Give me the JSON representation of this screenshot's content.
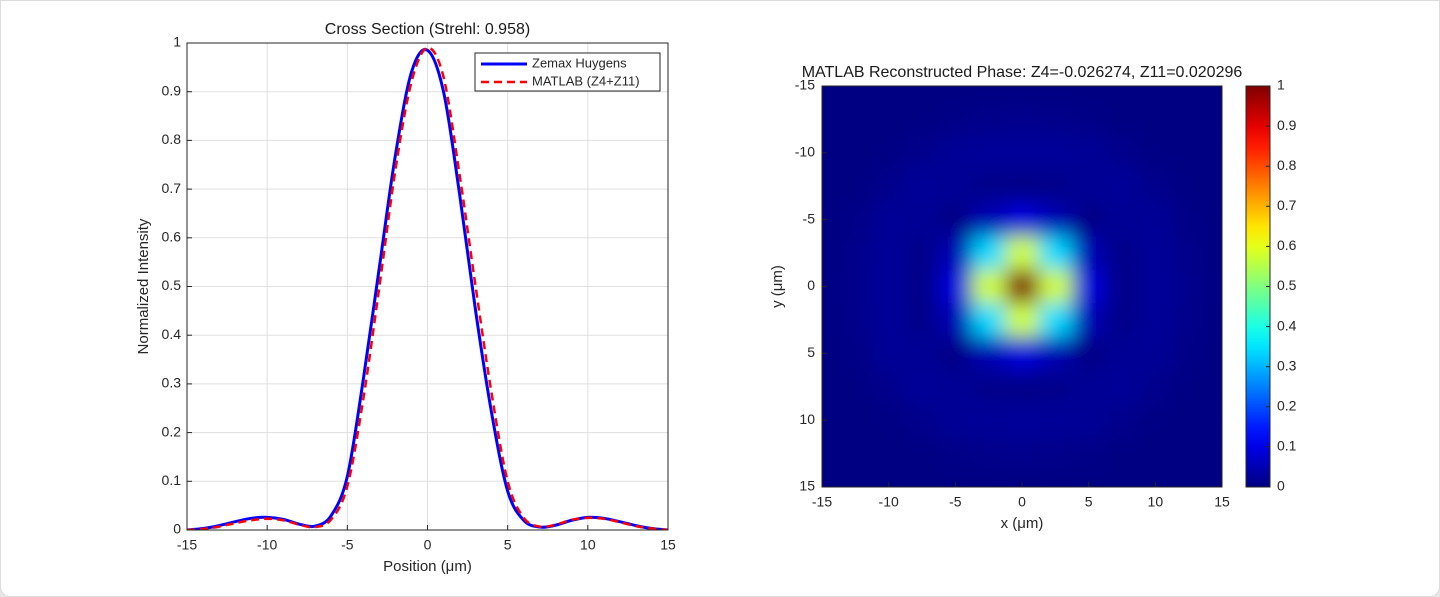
{
  "chart_data": [
    {
      "type": "line",
      "title": "Cross Section (Strehl: 0.958)",
      "xlabel": "Position  (μm)",
      "ylabel": "Normalized Intensity",
      "x": [
        -15,
        -14,
        -13,
        -12,
        -11,
        -10,
        -9,
        -8,
        -7,
        -6,
        -5,
        -4,
        -3,
        -2,
        -1,
        0,
        1,
        2,
        3,
        4,
        5,
        6,
        7,
        8,
        9,
        10,
        11,
        12,
        13,
        14,
        15
      ],
      "series": [
        {
          "name": "Zemax Huygens",
          "color": "#0000ff",
          "dashed": false,
          "values": [
            0,
            0.003,
            0.009,
            0.017,
            0.024,
            0.026,
            0.022,
            0.012,
            0.008,
            0.03,
            0.11,
            0.31,
            0.54,
            0.77,
            0.94,
            0.985,
            0.9,
            0.69,
            0.45,
            0.24,
            0.08,
            0.02,
            0.006,
            0.01,
            0.02,
            0.026,
            0.024,
            0.017,
            0.009,
            0.003,
            0
          ]
        },
        {
          "name": "MATLAB (Z4+Z11)",
          "color": "#ff0000",
          "dashed": true,
          "values": [
            0,
            0.002,
            0.007,
            0.014,
            0.02,
            0.023,
            0.02,
            0.011,
            0.006,
            0.022,
            0.09,
            0.27,
            0.5,
            0.74,
            0.92,
            0.99,
            0.93,
            0.73,
            0.5,
            0.28,
            0.1,
            0.025,
            0.007,
            0.011,
            0.021,
            0.025,
            0.023,
            0.016,
            0.008,
            0.003,
            0
          ]
        }
      ],
      "xlim": [
        -15,
        15
      ],
      "ylim": [
        0,
        1
      ],
      "xticks": [
        -15,
        -10,
        -5,
        0,
        5,
        10,
        15
      ],
      "yticks": [
        0,
        0.1,
        0.2,
        0.3,
        0.4,
        0.5,
        0.6,
        0.7,
        0.8,
        0.9,
        1
      ],
      "grid": true,
      "legend": "upper right"
    },
    {
      "type": "heatmap",
      "title": "MATLAB Reconstructed Phase: Z4=-0.026274, Z11=0.020296",
      "xlabel": "x  (μm)",
      "ylabel": "y  (μm)",
      "x": [
        -15,
        -12.5,
        -10,
        -7.5,
        -5,
        -2.5,
        0,
        2.5,
        5,
        7.5,
        10,
        12.5,
        15
      ],
      "y": [
        -15,
        -12.5,
        -10,
        -7.5,
        -5,
        -2.5,
        0,
        2.5,
        5,
        7.5,
        10,
        12.5,
        15
      ],
      "z": [
        [
          0.002,
          0.002,
          0.002,
          0.002,
          0.002,
          0.002,
          0.002,
          0.002,
          0.002,
          0.002,
          0.002,
          0.002,
          0.002
        ],
        [
          0.002,
          0.002,
          0.002,
          0.003,
          0.007,
          0.01,
          0.012,
          0.01,
          0.007,
          0.003,
          0.002,
          0.002,
          0.002
        ],
        [
          0.002,
          0.002,
          0.004,
          0.012,
          0.022,
          0.025,
          0.026,
          0.025,
          0.022,
          0.012,
          0.004,
          0.002,
          0.002
        ],
        [
          0.002,
          0.003,
          0.012,
          0.025,
          0.02,
          0.01,
          0.008,
          0.01,
          0.02,
          0.025,
          0.012,
          0.003,
          0.002
        ],
        [
          0.002,
          0.007,
          0.022,
          0.02,
          0.007,
          0.05,
          0.09,
          0.05,
          0.007,
          0.02,
          0.022,
          0.007,
          0.002
        ],
        [
          0.002,
          0.01,
          0.025,
          0.01,
          0.05,
          0.34,
          0.58,
          0.34,
          0.05,
          0.01,
          0.025,
          0.01,
          0.002
        ],
        [
          0.002,
          0.012,
          0.026,
          0.008,
          0.09,
          0.58,
          1,
          0.58,
          0.09,
          0.008,
          0.026,
          0.012,
          0.002
        ],
        [
          0.002,
          0.01,
          0.025,
          0.01,
          0.05,
          0.34,
          0.58,
          0.34,
          0.05,
          0.01,
          0.025,
          0.01,
          0.002
        ],
        [
          0.002,
          0.007,
          0.022,
          0.02,
          0.007,
          0.05,
          0.09,
          0.05,
          0.007,
          0.02,
          0.022,
          0.007,
          0.002
        ],
        [
          0.002,
          0.003,
          0.012,
          0.025,
          0.02,
          0.01,
          0.008,
          0.01,
          0.02,
          0.025,
          0.012,
          0.003,
          0.002
        ],
        [
          0.002,
          0.002,
          0.004,
          0.012,
          0.022,
          0.025,
          0.026,
          0.025,
          0.022,
          0.012,
          0.004,
          0.002,
          0.002
        ],
        [
          0.002,
          0.002,
          0.002,
          0.003,
          0.007,
          0.01,
          0.012,
          0.01,
          0.007,
          0.003,
          0.002,
          0.002,
          0.002
        ],
        [
          0.002,
          0.002,
          0.002,
          0.002,
          0.002,
          0.002,
          0.002,
          0.002,
          0.002,
          0.002,
          0.002,
          0.002,
          0.002
        ]
      ],
      "colormap": "jet",
      "xlim": [
        -15,
        15
      ],
      "ylim": [
        -15,
        15
      ],
      "y_reversed": true,
      "xticks": [
        -15,
        -10,
        -5,
        0,
        5,
        10,
        15
      ],
      "yticks": [
        -15,
        -10,
        -5,
        0,
        5,
        10,
        15
      ],
      "colorbar": {
        "lim": [
          0,
          1
        ],
        "ticks": [
          0,
          0.1,
          0.2,
          0.3,
          0.4,
          0.5,
          0.6,
          0.7,
          0.8,
          0.9,
          1
        ]
      }
    }
  ]
}
